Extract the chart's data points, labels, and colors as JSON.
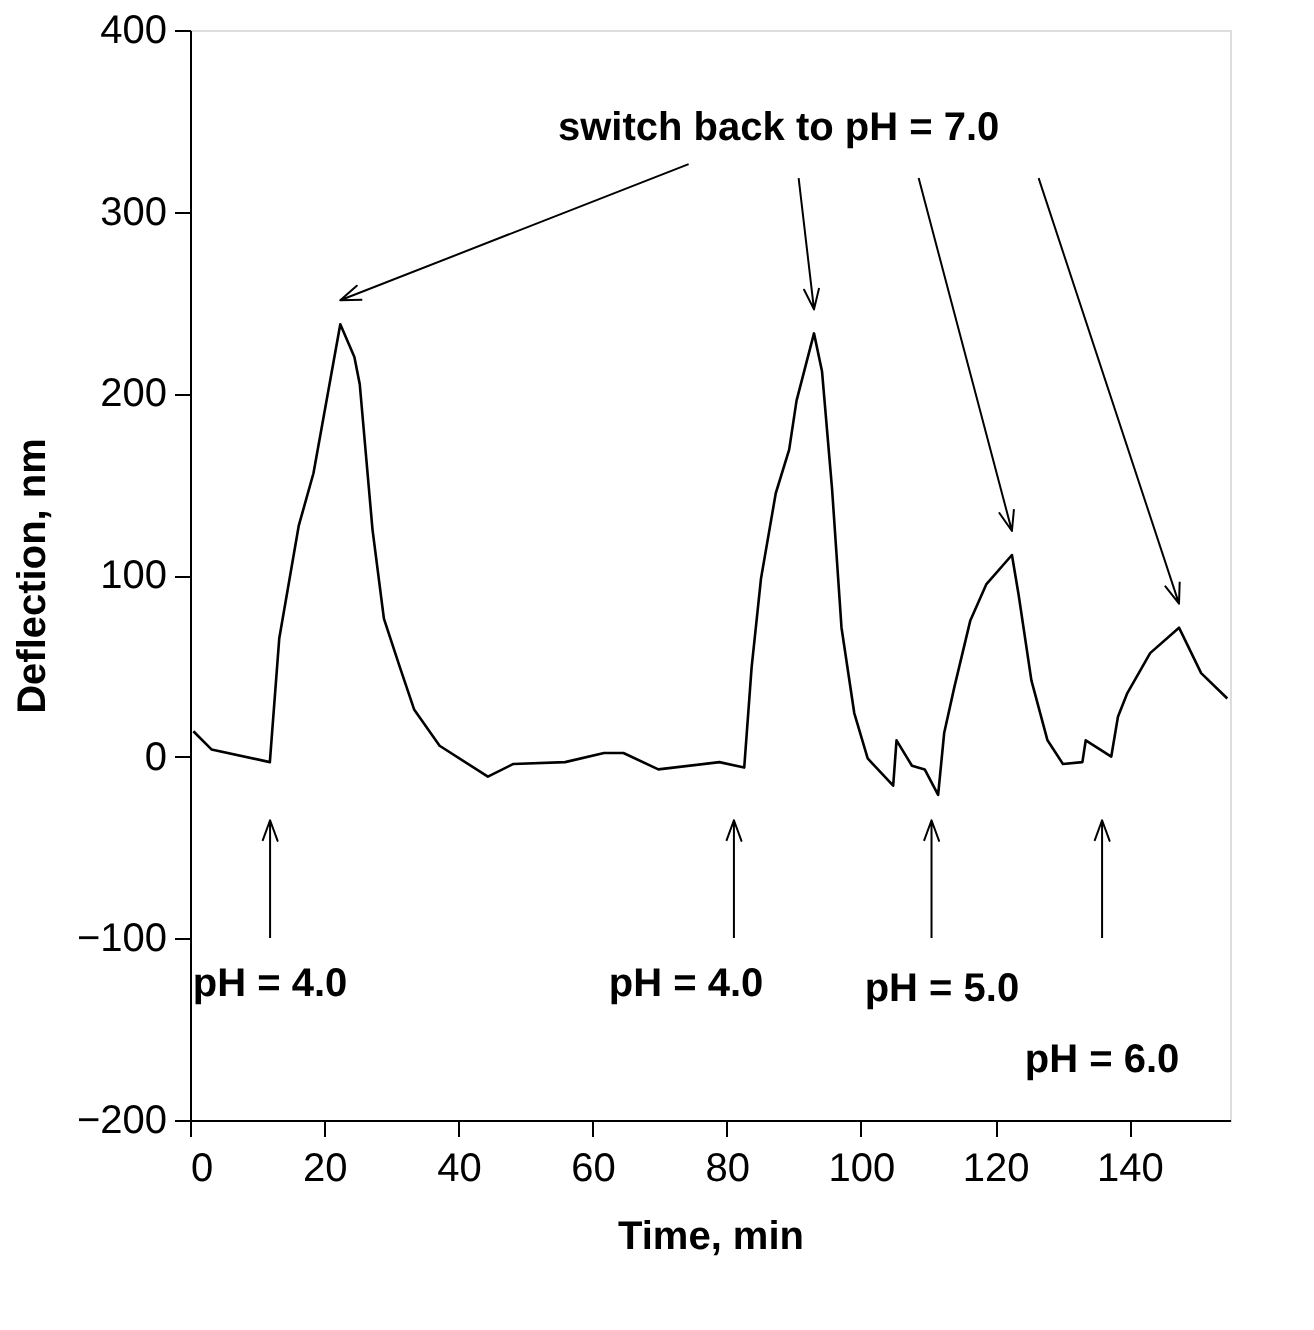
{
  "chart_data": {
    "type": "line",
    "xlabel": "Time, min",
    "ylabel": "Deflection, nm",
    "xlim": [
      0,
      155
    ],
    "ylim": [
      -200,
      400
    ],
    "xticks": [
      0,
      20,
      40,
      60,
      80,
      100,
      120,
      140
    ],
    "yticks": [
      -200,
      -100,
      0,
      100,
      200,
      300,
      400
    ],
    "grid": false,
    "marker": "none",
    "line_style": "solid",
    "series": [
      {
        "color": "#000000",
        "x": [
          0.5,
          3.2,
          11.9,
          13.3,
          16.2,
          18.4,
          22.4,
          24.5,
          25.3,
          27.2,
          28.9,
          31.3,
          33.4,
          37.2,
          44.4,
          48.2,
          55.9,
          61.7,
          64.6,
          69.8,
          78.9,
          82.6,
          83.7,
          85.1,
          87.3,
          89.3,
          90.4,
          93.0,
          94.2,
          95.7,
          97.1,
          99.0,
          101.0,
          104.8,
          105.3,
          107.6,
          109.5,
          111.5,
          112.4,
          113.9,
          116.3,
          118.7,
          122.5,
          123.5,
          125.4,
          127.8,
          130.1,
          133.0,
          133.5,
          137.3,
          138.3,
          139.7,
          143.1,
          147.4,
          150.7,
          154.6
        ],
        "values": [
          14,
          4,
          -3,
          65,
          127,
          156,
          238,
          220,
          205,
          125,
          76,
          49,
          26,
          6,
          -11,
          -4,
          -3,
          2,
          2,
          -7,
          -3,
          -6,
          49,
          98,
          145,
          169,
          196,
          233,
          212,
          147,
          71,
          24,
          -1,
          -16,
          9,
          -5,
          -7,
          -21,
          13,
          38,
          75,
          95,
          111,
          89,
          42,
          9,
          -4,
          -3,
          9,
          0,
          22,
          35,
          57,
          71,
          46,
          32
        ]
      }
    ],
    "annotations": [
      "switch back to pH = 7.0",
      "pH = 4.0",
      "pH = 4.0",
      "pH = 5.0",
      "pH = 6.0"
    ]
  }
}
